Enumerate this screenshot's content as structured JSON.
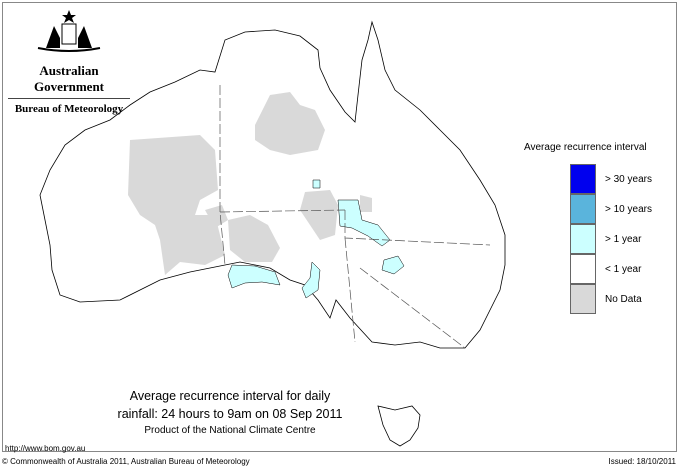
{
  "header": {
    "logo_alt": "Australian Government coat of arms",
    "government": "Australian Government",
    "bureau": "Bureau of Meteorology"
  },
  "legend": {
    "title": "Average recurrence interval",
    "items": [
      {
        "label": "> 30 years",
        "color": "#0000ee"
      },
      {
        "label": "> 10 years",
        "color": "#5ab4dc"
      },
      {
        "label": "> 1 year",
        "color": "#ccffff"
      },
      {
        "label": "< 1 year",
        "color": "#ffffff"
      },
      {
        "label": "No Data",
        "color": "#d9d9d9"
      }
    ]
  },
  "map": {
    "title_line1": "Average recurrence interval for daily",
    "title_line2": "rainfall: 24 hours to 9am on 08 Sep 2011",
    "subtitle": "Product of the National Climate Centre"
  },
  "footer": {
    "url": "http://www.bom.gov.au",
    "copyright": "© Commonwealth of Australia 2011, Australian Bureau of Meteorology",
    "issued": "Issued: 18/10/2011"
  }
}
